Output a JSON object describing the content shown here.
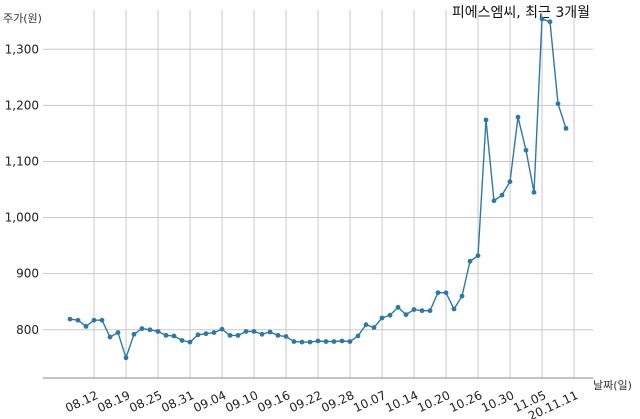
{
  "chart_data": {
    "type": "line",
    "title": "피에스엠씨, 최근 3개월",
    "ylabel": "주가(원)",
    "xlabel": "날짜(일)",
    "ylim": [
      714,
      1370
    ],
    "yticks": [
      800,
      900,
      1000,
      1100,
      1200,
      1300
    ],
    "ytick_labels": [
      "800",
      "900",
      "1,000",
      "1,100",
      "1,200",
      "1,300"
    ],
    "xtick_labels": [
      "08.12",
      "08.19",
      "08.25",
      "08.31",
      "09.04",
      "09.10",
      "09.16",
      "09.22",
      "09.28",
      "10.07",
      "10.14",
      "10.20",
      "10.26",
      "10.30",
      "11.05",
      "20.11.11"
    ],
    "xtick_index": [
      3,
      7,
      11,
      15,
      19,
      23,
      27,
      31,
      35,
      39,
      43,
      47,
      51,
      55,
      59,
      63
    ],
    "grid": true,
    "series_color": "#2e78a8",
    "values": [
      819,
      817,
      806,
      817,
      817,
      787,
      795,
      750,
      792,
      802,
      800,
      797,
      790,
      789,
      781,
      778,
      791,
      793,
      795,
      801,
      790,
      790,
      797,
      797,
      792,
      796,
      790,
      788,
      779,
      778,
      778,
      780,
      779,
      779,
      780,
      779,
      789,
      809,
      804,
      821,
      826,
      840,
      827,
      836,
      834,
      834,
      866,
      866,
      837,
      860,
      922,
      932,
      1174,
      1030,
      1040,
      1064,
      1179,
      1120,
      1045,
      1354,
      1349,
      1203,
      1159
    ]
  }
}
